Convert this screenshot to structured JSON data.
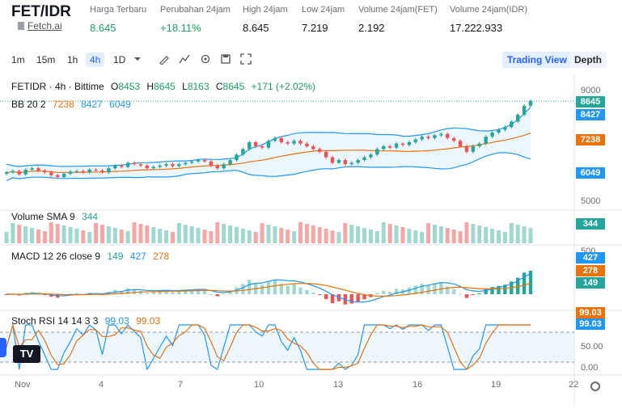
{
  "header": {
    "pair": "FET/IDR",
    "link": "Fetch.ai",
    "stats": [
      {
        "label": "Harga Terbaru",
        "value": "8.645",
        "up": true
      },
      {
        "label": "Perubahan 24jam",
        "value": "+18.11%",
        "up": true
      },
      {
        "label": "High 24jam",
        "value": "8.645",
        "up": false
      },
      {
        "label": "Low 24jam",
        "value": "7.219",
        "up": false
      },
      {
        "label": "Volume 24jam(FET)",
        "value": "2.192",
        "up": false
      },
      {
        "label": "Volume 24jam(IDR)",
        "value": "17.222.933",
        "up": false
      }
    ]
  },
  "toolbar": {
    "timeframes": [
      "1m",
      "15m",
      "1h",
      "4h",
      "1D"
    ],
    "active": "4h",
    "icons": [
      "chevron-down-icon",
      "draw-icon",
      "indicators-icon",
      "settings-icon",
      "save-icon",
      "fullscreen-icon"
    ],
    "view_trading": "Trading View",
    "view_depth": "Depth"
  },
  "legend": {
    "symbol": "FETIDR · 4h · Bittime",
    "o_label": "O",
    "o": "8453",
    "h_label": "H",
    "h": "8645",
    "l_label": "L",
    "l": "8163",
    "c_label": "C",
    "c": "8645",
    "change": "+171 (+2.02%)",
    "bb": "BB 20 2",
    "bb_mid": "7238",
    "bb_up": "8427",
    "bb_low": "6049",
    "vol": "Volume SMA 9",
    "vol_val": "344",
    "macd": "MACD 12 26 close 9",
    "macd_hist": "149",
    "macd_line": "427",
    "macd_signal": "278",
    "stoch": "Stoch RSI 14 14 3 3",
    "stoch_k": "99.03",
    "stoch_d": "99.03"
  },
  "price_axis": {
    "ticks": [
      "9000",
      "5000"
    ],
    "last": "8645",
    "bb_up": "8427",
    "bb_mid": "7238",
    "bb_low": "6049"
  },
  "volume_axis": {
    "last": "344"
  },
  "macd_axis": {
    "ticks": [
      "500"
    ],
    "macd": "427",
    "signal": "278",
    "hist": "149"
  },
  "stoch_axis": {
    "ticks": [
      "50.00",
      "0.00"
    ],
    "k": "99.03",
    "d": "99.03"
  },
  "time_axis": [
    "Nov",
    "4",
    "7",
    "10",
    "13",
    "16",
    "19",
    "22"
  ],
  "colors": {
    "up": "#26a69a",
    "down": "#ef5350",
    "bb": "#2196f3",
    "basis": "#e8720c",
    "accent": "#2962ff"
  },
  "chart_data": {
    "type": "candlestick",
    "close": [
      6050,
      6100,
      5980,
      6150,
      6200,
      6120,
      6050,
      5950,
      5880,
      6000,
      6080,
      6100,
      6050,
      6150,
      6120,
      6050,
      6200,
      6300,
      6250,
      6400,
      6350,
      6300,
      6200,
      6250,
      6300,
      6350,
      6280,
      6350,
      6400,
      6450,
      6500,
      6450,
      6300,
      6200,
      6350,
      6500,
      6700,
      6900,
      7150,
      7000,
      6950,
      7200,
      7300,
      7150,
      7100,
      7200,
      7100,
      7000,
      6900,
      6800,
      6600,
      6400,
      6500,
      6350,
      6400,
      6500,
      6600,
      6700,
      6900,
      7000,
      6950,
      7100,
      7050,
      7150,
      7250,
      7350,
      7300,
      7400,
      7450,
      7300,
      7200,
      7000,
      6800,
      7000,
      7100,
      7350,
      7500,
      7600,
      7700,
      7900,
      8150,
      8474,
      8645
    ],
    "bb_upper_end": 8427,
    "bb_basis_end": 7238,
    "bb_lower_end": 6049
  }
}
